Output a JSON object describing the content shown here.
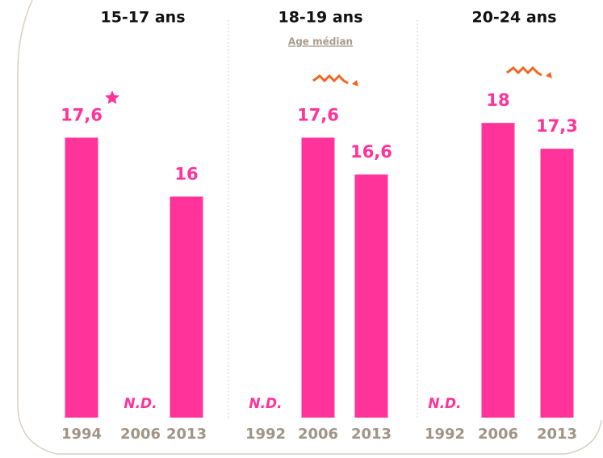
{
  "chart_data": [
    {
      "type": "bar",
      "title": "15-17 ans",
      "categories": [
        "1994",
        "2006",
        "2013"
      ],
      "values": [
        17.6,
        null,
        16
      ],
      "value_labels": [
        "17,6",
        "N.D.",
        "16"
      ],
      "color": "#ff3399",
      "ylim": [
        10,
        20
      ]
    },
    {
      "type": "bar",
      "title": "18-19 ans",
      "subtitle": "Age médian",
      "categories": [
        "1992",
        "2006",
        "2013"
      ],
      "values": [
        null,
        17.6,
        16.6
      ],
      "value_labels": [
        "N.D.",
        "17,6",
        "16,6"
      ],
      "color": "#ff3399",
      "ylim": [
        10,
        20
      ]
    },
    {
      "type": "bar",
      "title": "20-24 ans",
      "categories": [
        "1992",
        "2006",
        "2013"
      ],
      "values": [
        null,
        18,
        17.3
      ],
      "value_labels": [
        "N.D.",
        "18",
        "17,3"
      ],
      "color": "#ff3399",
      "ylim": [
        10,
        20
      ]
    }
  ]
}
